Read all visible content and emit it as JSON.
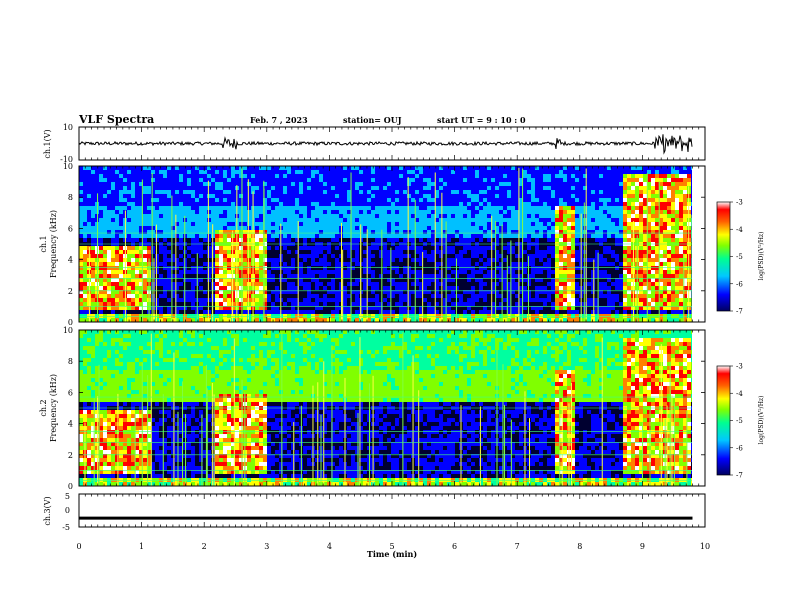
{
  "header": {
    "title": "VLF Spectra",
    "date": "Feb. 7 , 2023",
    "station": "station= OUJ",
    "start_ut": "start  UT =   9 : 10 : 0"
  },
  "colors": {
    "background": "#000033",
    "trace": "#000000",
    "colormap": [
      "#000080",
      "#0000ff",
      "#00c0ff",
      "#00ffa0",
      "#80ff00",
      "#ffff00",
      "#ff8000",
      "#ff0000",
      "#ffffff"
    ]
  },
  "chart_data": [
    {
      "type": "line",
      "panel": "ch1-waveform",
      "ylabel": "ch.1(V)",
      "ylim": [
        -10,
        10
      ],
      "yticks": [
        "10",
        "-10"
      ],
      "xlim": [
        0,
        10
      ],
      "grid": false
    },
    {
      "type": "heatmap",
      "panel": "ch1-spectrogram",
      "ylabel": "ch.1\nFrequency (kHz)",
      "ylim": [
        0,
        10
      ],
      "yticks": [
        "0",
        "2",
        "4",
        "6",
        "8",
        "10"
      ],
      "xlim": [
        0,
        10
      ],
      "colorbar": {
        "label": "log(PSD)(V²/Hz)",
        "range": [
          -7,
          -3
        ],
        "ticks": [
          "-3",
          "-4",
          "-5",
          "-6",
          "-7"
        ]
      },
      "bursts_min": [
        [
          0.0,
          1.15
        ],
        [
          2.2,
          3.0
        ],
        [
          7.6,
          7.9
        ],
        [
          8.7,
          9.8
        ]
      ],
      "data_end_min": 9.8
    },
    {
      "type": "heatmap",
      "panel": "ch2-spectrogram",
      "ylabel": "ch.2\nFrequency (kHz)",
      "ylim": [
        0,
        10
      ],
      "yticks": [
        "0",
        "2",
        "4",
        "6",
        "8",
        "10"
      ],
      "xlim": [
        0,
        10
      ],
      "colorbar": {
        "label": "log(PSD)(V²/Hz)",
        "range": [
          -7,
          -3
        ],
        "ticks": [
          "-3",
          "-4",
          "-5",
          "-6",
          "-7"
        ]
      },
      "bursts_min": [
        [
          0.0,
          1.15
        ],
        [
          2.2,
          3.0
        ],
        [
          7.6,
          7.95
        ],
        [
          8.7,
          9.8
        ]
      ],
      "data_end_min": 9.8
    },
    {
      "type": "line",
      "panel": "ch3-waveform",
      "ylabel": "ch.3(V)",
      "ylim": [
        -5,
        5
      ],
      "yticks": [
        "5",
        "0",
        "-5"
      ],
      "xlim": [
        0,
        10
      ],
      "x": [
        0,
        9.8
      ],
      "y": [
        -2.3,
        -2.3
      ],
      "grid": false
    }
  ],
  "xaxis": {
    "label": "Time (min)",
    "ticks": [
      "0",
      "1",
      "2",
      "3",
      "4",
      "5",
      "6",
      "7",
      "8",
      "9",
      "10"
    ]
  }
}
